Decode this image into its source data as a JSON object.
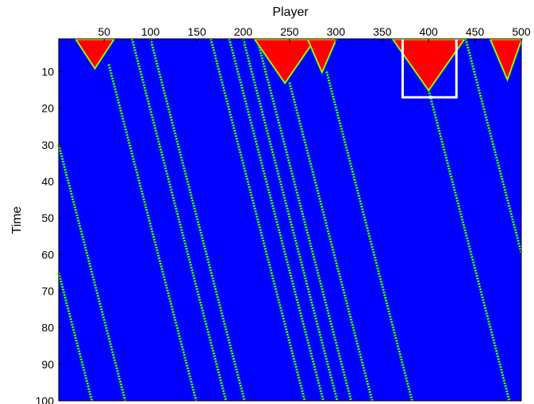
{
  "chart_data": {
    "type": "heatmap",
    "title": "",
    "xlabel": "Player",
    "ylabel": "Time",
    "xlim": [
      1,
      500
    ],
    "ylim": [
      1,
      100
    ],
    "x_axis_position": "top",
    "y_axis_direction": "down",
    "xticks": [
      50,
      100,
      150,
      200,
      250,
      300,
      350,
      400,
      450,
      500
    ],
    "yticks": [
      10,
      20,
      30,
      40,
      50,
      60,
      70,
      80,
      90,
      100
    ],
    "colors": {
      "background": "#0000ff",
      "active": "#ff0000",
      "edge": "#00ff00",
      "edge_inner": "#ffff00"
    },
    "diagonal_streaks": [
      {
        "start_x": 1,
        "start_t": 30
      },
      {
        "start_x": 1,
        "start_t": 65
      },
      {
        "start_x": 55,
        "start_t": 8
      },
      {
        "start_x": 80,
        "start_t": 1
      },
      {
        "start_x": 100,
        "start_t": 1
      },
      {
        "start_x": 165,
        "start_t": 1
      },
      {
        "start_x": 185,
        "start_t": 1
      },
      {
        "start_x": 200,
        "start_t": 1
      },
      {
        "start_x": 215,
        "start_t": 1
      },
      {
        "start_x": 250,
        "start_t": 13
      },
      {
        "start_x": 290,
        "start_t": 10
      },
      {
        "start_x": 400,
        "start_t": 15
      },
      {
        "start_x": 440,
        "start_t": 1
      }
    ],
    "active_triangles": [
      {
        "center_x": 40,
        "half_width": 20,
        "height": 9
      },
      {
        "center_x": 245,
        "half_width": 32,
        "height": 13
      },
      {
        "center_x": 285,
        "half_width": 15,
        "height": 10
      },
      {
        "center_x": 400,
        "half_width": 38,
        "height": 15
      },
      {
        "center_x": 485,
        "half_width": 18,
        "height": 12
      }
    ],
    "highlight_box": {
      "x_range": [
        372,
        430
      ],
      "t_range": [
        1,
        17
      ],
      "color": "#ffffff"
    }
  }
}
